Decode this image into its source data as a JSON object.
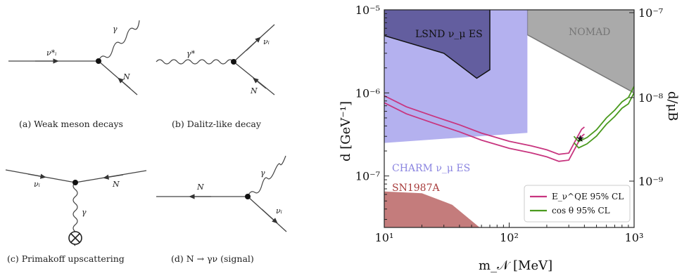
{
  "diagrams": {
    "a": {
      "caption": "(a) Weak meson decays",
      "labels": [
        "ν*ᵢ",
        "γ",
        "N"
      ]
    },
    "b": {
      "caption": "(b) Dalitz-like decay",
      "labels": [
        "γ*",
        "νᵢ",
        "N"
      ]
    },
    "c": {
      "caption": "(c) Primakoff upscattering",
      "labels": [
        "νᵢ",
        "N",
        "γ"
      ]
    },
    "d": {
      "caption": "(d) N → γν (signal)",
      "labels": [
        "N",
        "γ",
        "νᵢ"
      ]
    }
  },
  "chart_data": {
    "type": "area",
    "xlabel": "m_𝒩 [MeV]",
    "ylabel": "d [GeV⁻¹]",
    "y2label": "d/μB",
    "x_scale": "log",
    "y_scale": "log",
    "xlim": [
      10,
      1000
    ],
    "ylim": [
      2.4e-08,
      1e-05
    ],
    "x_ticks": [
      "10¹",
      "10²",
      "10³"
    ],
    "y_ticks": [
      "10⁻⁵",
      "10⁻⁶",
      "10⁻⁷"
    ],
    "y2_ticks": [
      "10⁻⁷",
      "10⁻⁸",
      "10⁻⁹"
    ],
    "regions": [
      {
        "name": "NOMAD",
        "color": "#aaaaaa",
        "boundary_x": [
          140,
          140,
          1000
        ],
        "boundary_y": [
          1e-05,
          5e-06,
          1e-06
        ]
      },
      {
        "name": "CHARM ν_μ ES",
        "color": "#a7a3ec",
        "boundary_x": [
          10,
          10,
          140,
          140
        ],
        "boundary_y": [
          2.5e-07,
          1e-05,
          1e-05,
          3.3e-07
        ]
      },
      {
        "name": "LSND ν_μ ES",
        "color": "#555090",
        "boundary_x": [
          10,
          10,
          30,
          55,
          70,
          70
        ],
        "boundary_y": [
          1e-05,
          4.9e-06,
          3e-06,
          1.5e-06,
          1.9e-06,
          1e-05
        ]
      },
      {
        "name": "SN1987A",
        "color": "#c47c7c",
        "boundary_x": [
          10,
          20,
          35,
          58
        ],
        "boundary_y": [
          6.5e-08,
          6.2e-08,
          4.5e-08,
          2.4e-08
        ]
      }
    ],
    "series": [
      {
        "name": "E_ν^QE 95% CL",
        "color": "#c8357f",
        "x": [
          10,
          15,
          25,
          40,
          60,
          100,
          150,
          200,
          250,
          300,
          350,
          380,
          400
        ],
        "y": [
          7.6e-07,
          5.6e-07,
          4.3e-07,
          3.4e-07,
          2.7e-07,
          2.15e-07,
          1.9e-07,
          1.7e-07,
          1.5e-07,
          1.55e-07,
          2.4e-07,
          3e-07,
          3.2e-07
        ]
      },
      {
        "name": "cos θ 95% CL",
        "color": "#4a9a1e",
        "x": [
          330,
          360,
          420,
          500,
          600,
          700,
          800,
          900,
          1000
        ],
        "y": [
          3e-07,
          2.6e-07,
          2.9e-07,
          3.6e-07,
          5e-07,
          6.2e-07,
          7.8e-07,
          8.8e-07,
          1.2e-06
        ]
      }
    ],
    "marker": {
      "x": 370,
      "y": 2.9e-07,
      "symbol": "★"
    },
    "legend_placement": "bottom-right"
  }
}
